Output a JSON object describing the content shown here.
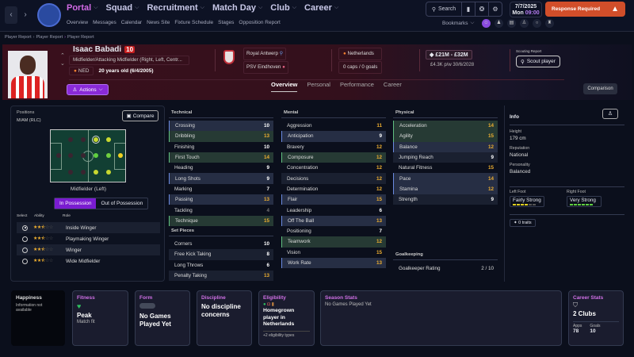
{
  "nav": {
    "back": "‹",
    "forward": "›",
    "main": [
      {
        "label": "Portal",
        "active": true
      },
      {
        "label": "Squad"
      },
      {
        "label": "Recruitment"
      },
      {
        "label": "Match Day"
      },
      {
        "label": "Club"
      },
      {
        "label": "Career"
      }
    ],
    "sub": [
      "Overview",
      "Messages",
      "Calendar",
      "News Site",
      "Fixture Schedule",
      "Stages",
      "Opposition Report"
    ],
    "search": "Search",
    "date": "7/7/2025",
    "day": "Mon",
    "time": "09:00",
    "response": "Response Required",
    "bookmarks": "Bookmarks"
  },
  "breadcrumb": [
    "Player Report",
    "Player Report",
    "Player Report"
  ],
  "player": {
    "name": "Isaac Babadi",
    "number": "10",
    "position": "Midfielder/Attacking Midfielder (Right, Left, Centr...",
    "nationality": "NED",
    "age": "20 years old (6/4/2005)",
    "actions": "Actions",
    "club": "Royal Antwerp",
    "parent_club": "PSV Eindhoven",
    "country": "Netherlands",
    "caps": "0 caps / 0 goals",
    "value": "£21M - £32M",
    "wage": "£4.3K p/w 30/6/2028",
    "scouting_label": "Scouting Report",
    "scout_btn": "Scout player"
  },
  "tabs": [
    "Overview",
    "Personal",
    "Performance",
    "Career"
  ],
  "comparison": "Comparison",
  "positions": {
    "label": "Positions",
    "value": "M/AM (RLC)",
    "compare": "Compare",
    "caption": "Midfielder (Left)",
    "in_poss": "In Possession",
    "out_poss": "Out of Possession",
    "head": [
      "Select",
      "Ability",
      "Role"
    ],
    "roles": [
      {
        "name": "Inside Winger",
        "sel": true
      },
      {
        "name": "Playmaking Winger"
      },
      {
        "name": "Winger"
      },
      {
        "name": "Wide Midfielder"
      }
    ]
  },
  "technical": {
    "title": "Technical",
    "rows": [
      [
        "Crossing",
        "10",
        "blue"
      ],
      [
        "Dribbling",
        "13",
        "green"
      ],
      [
        "Finishing",
        "10",
        ""
      ],
      [
        "First Touch",
        "14",
        "green"
      ],
      [
        "Heading",
        "9",
        ""
      ],
      [
        "Long Shots",
        "9",
        "blue"
      ],
      [
        "Marking",
        "7",
        ""
      ],
      [
        "Passing",
        "13",
        "blue"
      ],
      [
        "Tackling",
        "4",
        ""
      ],
      [
        "Technique",
        "15",
        "green"
      ]
    ]
  },
  "setpieces": {
    "title": "Set Pieces",
    "rows": [
      [
        "Corners",
        "10",
        ""
      ],
      [
        "Free Kick Taking",
        "8",
        ""
      ],
      [
        "Long Throws",
        "6",
        ""
      ],
      [
        "Penalty Taking",
        "13",
        ""
      ]
    ]
  },
  "mental": {
    "title": "Mental",
    "rows": [
      [
        "Aggression",
        "11",
        ""
      ],
      [
        "Anticipation",
        "9",
        "blue"
      ],
      [
        "Bravery",
        "12",
        ""
      ],
      [
        "Composure",
        "12",
        "green"
      ],
      [
        "Concentration",
        "12",
        ""
      ],
      [
        "Decisions",
        "12",
        ""
      ],
      [
        "Determination",
        "12",
        ""
      ],
      [
        "Flair",
        "15",
        "blue"
      ],
      [
        "Leadership",
        "6",
        ""
      ],
      [
        "Off The Ball",
        "13",
        "blue"
      ],
      [
        "Positioning",
        "7",
        ""
      ],
      [
        "Teamwork",
        "12",
        "green"
      ],
      [
        "Vision",
        "15",
        ""
      ],
      [
        "Work Rate",
        "13",
        "blue"
      ]
    ]
  },
  "physical": {
    "title": "Physical",
    "rows": [
      [
        "Acceleration",
        "14",
        "green"
      ],
      [
        "Agility",
        "15",
        "green"
      ],
      [
        "Balance",
        "12",
        "blue"
      ],
      [
        "Jumping Reach",
        "9",
        ""
      ],
      [
        "Natural Fitness",
        "15",
        ""
      ],
      [
        "Pace",
        "14",
        "blue"
      ],
      [
        "Stamina",
        "12",
        "blue"
      ],
      [
        "Strength",
        "9",
        ""
      ]
    ]
  },
  "goalkeeping": {
    "title": "Goalkeeping",
    "label": "Goalkeeper Rating",
    "value": "2 / 10"
  },
  "info": {
    "title": "Info",
    "height_lbl": "Height",
    "height": "179 cm",
    "rep_lbl": "Reputation",
    "rep": "National",
    "pers_lbl": "Personality",
    "pers": "Balanced",
    "lf_lbl": "Left Foot",
    "lf": "Fairly Strong",
    "rf_lbl": "Right Foot",
    "rf": "Very Strong",
    "traits": "0 traits"
  },
  "cards": {
    "happiness": {
      "title": "Happiness",
      "text": "Information not available"
    },
    "fitness": {
      "title": "Fitness",
      "value": "Peak",
      "sub": "Match fit"
    },
    "form": {
      "title": "Form",
      "value": "No Games Played Yet"
    },
    "discipline": {
      "title": "Discipline",
      "value": "No discipline concerns"
    },
    "eligibility": {
      "title": "Eligibility",
      "value": "Homegrown player in Netherlands",
      "sub": "+2 eligibility types"
    },
    "season": {
      "title": "Season Stats",
      "text": "No Games Played Yet"
    },
    "career": {
      "title": "Career Stats",
      "value": "2 Clubs",
      "apps_lbl": "Apps",
      "apps": "78",
      "goals_lbl": "Goals",
      "goals": "10"
    }
  }
}
